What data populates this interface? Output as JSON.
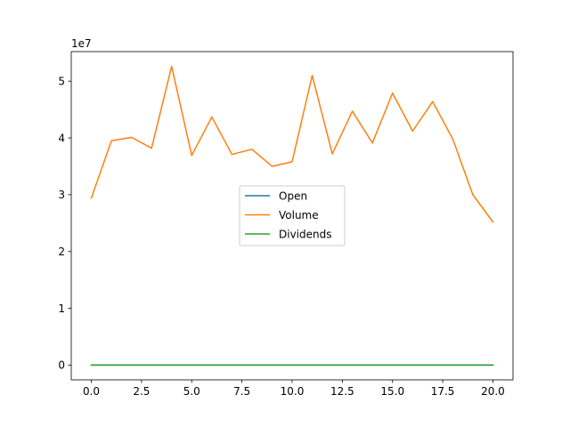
{
  "chart_data": {
    "type": "line",
    "title": "",
    "xlabel": "",
    "ylabel": "",
    "y_offset_label": "1e7",
    "xlim": [
      -1,
      21
    ],
    "ylim": [
      -2600000,
      55200000
    ],
    "x_ticks": [
      0.0,
      2.5,
      5.0,
      7.5,
      10.0,
      12.5,
      15.0,
      17.5,
      20.0
    ],
    "x_tick_labels": [
      "0.0",
      "2.5",
      "5.0",
      "7.5",
      "10.0",
      "12.5",
      "15.0",
      "17.5",
      "20.0"
    ],
    "y_ticks": [
      0,
      10000000,
      20000000,
      30000000,
      40000000,
      50000000
    ],
    "y_tick_labels": [
      "0",
      "1",
      "2",
      "3",
      "4",
      "5"
    ],
    "grid": false,
    "legend_position": "center",
    "x": [
      0,
      1,
      2,
      3,
      4,
      5,
      6,
      7,
      8,
      9,
      10,
      11,
      12,
      13,
      14,
      15,
      16,
      17,
      18,
      19,
      20
    ],
    "series": [
      {
        "name": "Open",
        "color": "#1f77b4",
        "values": [
          20,
          20,
          20,
          20,
          20,
          20,
          20,
          20,
          20,
          20,
          20,
          20,
          20,
          20,
          20,
          20,
          20,
          20,
          20,
          20,
          20
        ]
      },
      {
        "name": "Volume",
        "color": "#ff7f0e",
        "values": [
          29400000,
          39500000,
          40100000,
          38200000,
          52600000,
          36900000,
          43700000,
          37100000,
          38000000,
          35000000,
          35800000,
          51000000,
          37200000,
          44700000,
          39100000,
          47900000,
          41200000,
          46400000,
          39800000,
          30000000,
          25200000
        ]
      },
      {
        "name": "Dividends",
        "color": "#2ca02c",
        "values": [
          0,
          0,
          0,
          0,
          0,
          0,
          0,
          0,
          0,
          0,
          0,
          0,
          0,
          0,
          0,
          0,
          0,
          0,
          0,
          0,
          0
        ]
      }
    ]
  }
}
